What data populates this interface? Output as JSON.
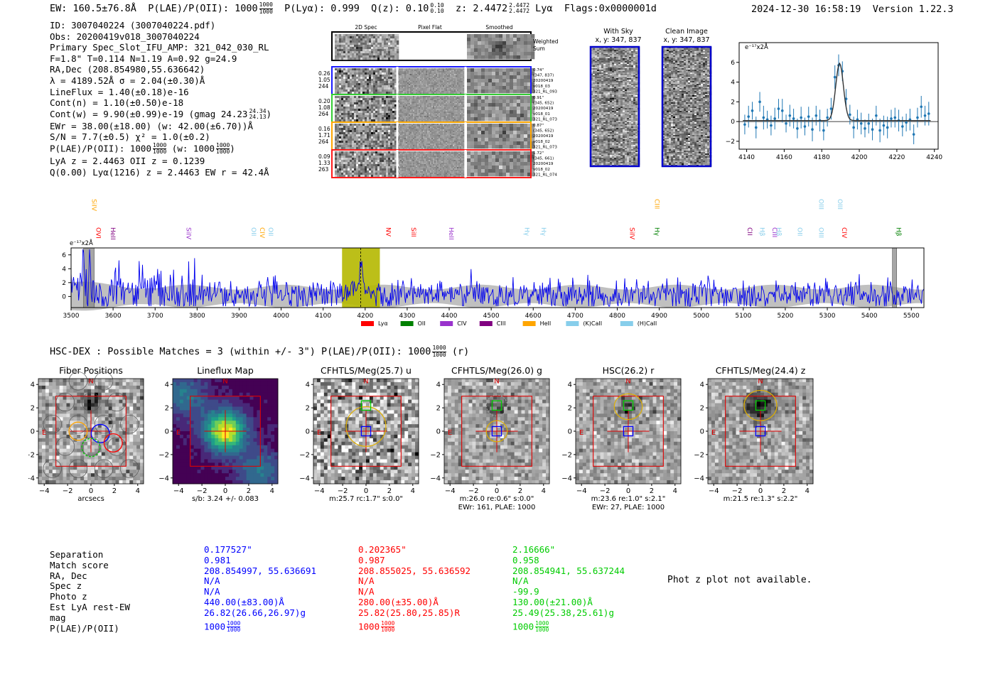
{
  "header": {
    "ew": "EW: 160.5±76.8Å",
    "plae_label": "P(LAE)/P(OII):",
    "plae_value": "1000",
    "plae_hi": "1000",
    "plae_lo": "1000",
    "plya": "P(Lyα): 0.999",
    "qz_label": "Q(z):",
    "qz_value": "0.10",
    "qz_hi": "0.10",
    "qz_lo": "0.10",
    "z_label": "z:",
    "z_value": "2.4472",
    "z_hi": "2.4472",
    "z_lo": "2.4472",
    "line": "Lyα",
    "flags": "Flags:0x0000001d",
    "datetime": "2024-12-30 16:58:19",
    "version": "Version 1.22.3"
  },
  "info": {
    "id": "ID: 3007040224 (3007040224.pdf)",
    "obs": "Obs: 20200419v018_3007040224",
    "primary": "Primary Spec_Slot_IFU_AMP: 321_042_030_RL",
    "fwhm": "F=1.8\"  T=0.114  N=1.19  A=0.92  g=24.9",
    "radec": "RA,Dec (208.854980,55.636642)",
    "lambda": "λ = 4189.52Å  σ = 2.04(±0.30)Å",
    "lineflux": "LineFlux = 1.40(±0.18)e-16",
    "contn": "Cont(n) = 1.10(±0.50)e-18",
    "contw": "Cont(w) = 9.90(±0.99)e-19 (gmag 24.23",
    "contw_hi": "24.34",
    "contw_lo": "24.13",
    "contw_end": ")",
    "ewr": "EWr = 38.00(±18.00) (w: 42.00(±6.70))Å",
    "sn": "S/N = 7.7(±0.5)  χ² = 1.0(±0.2)",
    "plae": "P(LAE)/P(OII): 1000",
    "plae_hi": "1000",
    "plae_lo": "1000",
    "plae_w": "(w: 1000",
    "plae_w_hi": "1000",
    "plae_w_lo": "1000",
    "plae_w_end": ")",
    "lyaz": "LyA z = 2.4463  OII z = 0.1239",
    "q": "Q(0.00) Lyα(1216) z = 2.4463  EW r = 42.4Å"
  },
  "cutout_panel": {
    "col_labels": [
      "2D Spec",
      "Pixel Flat",
      "Smoothed"
    ],
    "weighted_sum": "Weighted Sum",
    "rows": [
      {
        "left": [
          "0.26",
          "1.05",
          "244"
        ],
        "right": [
          "0.74\"",
          "(347, 837)",
          "20200419",
          "v018_03",
          "321_RL_093"
        ],
        "color": "#1a1aff"
      },
      {
        "left": [
          "0.20",
          "1.08",
          "264"
        ],
        "right": [
          "0.91\"",
          "(345, 652)",
          "20200419",
          "v018_01",
          "321_RL_073"
        ],
        "color": "#33cc33"
      },
      {
        "left": [
          "0.16",
          "1.71",
          "264"
        ],
        "right": [
          "0.87\"",
          "(345, 652)",
          "20200419",
          "v018_02",
          "321_RL_073"
        ],
        "color": "#ffa500"
      },
      {
        "left": [
          "0.09",
          "1.33",
          "263"
        ],
        "right": [
          "1.72\"",
          "(345, 661)",
          "20200419",
          "v018_02",
          "321_RL_074"
        ],
        "color": "#ff1a1a"
      }
    ]
  },
  "sky_panels": {
    "with_sky_title": "With Sky",
    "with_sky_coords": "x, y: 347, 837",
    "clean_title": "Clean Image",
    "clean_coords": "x, y: 347, 837"
  },
  "zoom_chart": {
    "ylabel": "e⁻¹⁷x2Å"
  },
  "chart_data": [
    {
      "type": "line",
      "title": "Line fit zoom",
      "xlim": [
        4136,
        4242
      ],
      "ylim": [
        -2.8,
        8.0
      ],
      "xticks": [
        4140,
        4160,
        4180,
        4200,
        4220,
        4240
      ],
      "yticks": [
        -2,
        0,
        2,
        4,
        6
      ],
      "ylabel": "e⁻¹⁷x2Å",
      "series": [
        {
          "name": "data",
          "color": "#1f77b4",
          "x": [
            4139,
            4141,
            4143,
            4145,
            4147,
            4149,
            4151,
            4153,
            4155,
            4157,
            4159,
            4161,
            4163,
            4165,
            4167,
            4169,
            4171,
            4173,
            4175,
            4177,
            4179,
            4181,
            4183,
            4185,
            4187,
            4189,
            4191,
            4193,
            4195,
            4197,
            4199,
            4201,
            4203,
            4205,
            4207,
            4209,
            4211,
            4213,
            4215,
            4217,
            4219,
            4221,
            4223,
            4225,
            4227,
            4229,
            4231,
            4233,
            4235,
            4237
          ],
          "y": [
            -0.3,
            0.5,
            1.1,
            -0.6,
            2.0,
            0.4,
            0.2,
            -0.4,
            0.3,
            1.3,
            1.1,
            -0.2,
            0.6,
            0.3,
            -0.7,
            0.4,
            -0.5,
            0.5,
            -0.8,
            0.6,
            0.1,
            -0.9,
            0.4,
            1.3,
            4.5,
            5.7,
            5.1,
            2.3,
            0.7,
            -0.6,
            0.2,
            -0.2,
            -0.7,
            -0.2,
            -0.8,
            0.6,
            -0.9,
            -0.4,
            -0.6,
            0.3,
            0.4,
            0.1,
            -0.5,
            -0.1,
            0.2,
            -1.3,
            0.4,
            1.5,
            0.6,
            0.8
          ],
          "err": [
            1.0,
            1.1,
            0.9,
            1.1,
            1.0,
            1.2,
            0.9,
            1.0,
            1.1,
            1.0,
            1.2,
            0.9,
            1.1,
            1.0,
            1.0,
            1.1,
            0.9,
            1.0,
            1.2,
            1.0,
            1.1,
            1.0,
            0.9,
            1.1,
            1.2,
            1.1,
            1.0,
            1.0,
            1.0,
            1.1,
            1.0,
            1.1,
            0.9,
            1.0,
            1.1,
            1.0,
            1.2,
            1.0,
            1.1,
            0.9,
            1.0,
            1.1,
            1.0,
            0.9,
            1.1,
            1.0,
            1.0,
            1.1,
            1.0,
            1.2
          ]
        },
        {
          "name": "model",
          "color": "#333333",
          "baseline": 0.1,
          "amplitude": 5.8,
          "center": 4189.5,
          "sigma": 2.04
        }
      ]
    },
    {
      "type": "line",
      "title": "Full spectrum",
      "xlim": [
        3500,
        5530
      ],
      "ylim": [
        -1.6,
        7.0
      ],
      "xticks": [
        3500,
        3600,
        3700,
        3800,
        3900,
        4000,
        4100,
        4200,
        4300,
        4400,
        4500,
        4600,
        4700,
        4800,
        4900,
        5000,
        5100,
        5200,
        5300,
        5400,
        5500
      ],
      "yticks": [
        0,
        2,
        4,
        6
      ],
      "ylabel": "e⁻¹⁷x2Å",
      "highlight_band": [
        4145,
        4235
      ],
      "gray_bars": [
        [
          3530,
          3555
        ],
        [
          5455,
          5465
        ]
      ],
      "dashed_at": 4189.5,
      "legend": [
        {
          "label": "Lyα",
          "color": "#ff0000"
        },
        {
          "label": "OII",
          "color": "#008000"
        },
        {
          "label": "CIV",
          "color": "#9932cc"
        },
        {
          "label": "CIII",
          "color": "#800080"
        },
        {
          "label": "HeII",
          "color": "#ffa500"
        },
        {
          "label": "(K)CaII",
          "color": "#87ceeb"
        },
        {
          "label": "(H)CaII",
          "color": "#87ceeb"
        }
      ],
      "line_labels": [
        {
          "x": 3545,
          "label": "SiIV",
          "color": "#ffa500",
          "row": "top"
        },
        {
          "x": 3555,
          "label": "OVI",
          "color": "#ff0000",
          "row": "low"
        },
        {
          "x": 3590,
          "label": "HeII",
          "color": "#800080",
          "row": "low"
        },
        {
          "x": 3770,
          "label": "SiIV",
          "color": "#9932cc",
          "row": "low"
        },
        {
          "x": 3925,
          "label": "OII",
          "color": "#87ceeb",
          "row": "low"
        },
        {
          "x": 3945,
          "label": "CIV",
          "color": "#ffa500",
          "row": "low"
        },
        {
          "x": 3965,
          "label": "OII",
          "color": "#87ceeb",
          "row": "low"
        },
        {
          "x": 4245,
          "label": "NV",
          "color": "#ff0000",
          "row": "low"
        },
        {
          "x": 4305,
          "label": "SiII",
          "color": "#ff0000",
          "row": "low"
        },
        {
          "x": 4395,
          "label": "HeII",
          "color": "#9932cc",
          "row": "low"
        },
        {
          "x": 4575,
          "label": "Hγ",
          "color": "#87ceeb",
          "row": "low"
        },
        {
          "x": 4615,
          "label": "Hγ",
          "color": "#87ceeb",
          "row": "low"
        },
        {
          "x": 4825,
          "label": "SiIV",
          "color": "#ff0000",
          "row": "low"
        },
        {
          "x": 4885,
          "label": "CIII",
          "color": "#ffa500",
          "row": "top"
        },
        {
          "x": 4885,
          "label": "Hγ",
          "color": "#008000",
          "row": "low"
        },
        {
          "x": 5105,
          "label": "CII",
          "color": "#800080",
          "row": "low"
        },
        {
          "x": 5135,
          "label": "Hβ",
          "color": "#87ceeb",
          "row": "low"
        },
        {
          "x": 5165,
          "label": "CIII",
          "color": "#9932cc",
          "row": "low"
        },
        {
          "x": 5175,
          "label": "Hβ",
          "color": "#87ceeb",
          "row": "low"
        },
        {
          "x": 5225,
          "label": "OII",
          "color": "#87ceeb",
          "row": "low"
        },
        {
          "x": 5275,
          "label": "OIII",
          "color": "#87ceeb",
          "row": "low"
        },
        {
          "x": 5275,
          "label": "OIII",
          "color": "#87ceeb",
          "row": "top"
        },
        {
          "x": 5320,
          "label": "OIII",
          "color": "#87ceeb",
          "row": "top"
        },
        {
          "x": 5330,
          "label": "CIV",
          "color": "#ff0000",
          "row": "low"
        },
        {
          "x": 5460,
          "label": "Hβ",
          "color": "#008000",
          "row": "low"
        }
      ]
    }
  ],
  "matches_title": "HSC-DEX : Possible Matches = 3 (within +/- 3\")  P(LAE)/P(OII): 1000",
  "matches_hi": "1000",
  "matches_lo": "1000",
  "matches_band": "(r)",
  "stamps": [
    {
      "title": "Fiber Positions",
      "xlabel": "arcsecs",
      "sub2": "",
      "kind": "fiber",
      "ticks": [
        "−4",
        "−2",
        "0",
        "2",
        "4"
      ],
      "n": "N",
      "e": "E"
    },
    {
      "title": "Lineflux Map",
      "xlabel": "s/b: 3.24 +/- 0.083",
      "sub2": "",
      "kind": "flux",
      "ticks": [
        "−4",
        "−2",
        "0",
        "2",
        "4"
      ],
      "n": "N",
      "e": "E"
    },
    {
      "title": "CFHTLS/Meg(25.7) u",
      "xlabel": "m:25.7 rc:1.7\"  s:0.0\"",
      "sub2": "",
      "kind": "u",
      "ticks": [
        "−4",
        "−2",
        "0",
        "2",
        "4"
      ],
      "n": "N",
      "e": "E"
    },
    {
      "title": "CFHTLS/Meg(26.0) g",
      "xlabel": "m:26.0  re:0.6\"  s:0.0\"",
      "sub2": "EWr: 161, PLAE: 1000",
      "kind": "g",
      "ticks": [
        "−4",
        "−2",
        "0",
        "2",
        "4"
      ],
      "n": "N",
      "e": "E"
    },
    {
      "title": "HSC(26.2) r",
      "xlabel": "m:23.6  re:1.0\"  s:2.1\"",
      "sub2": "EWr: 27, PLAE: 1000",
      "kind": "r",
      "ticks": [
        "−4",
        "−2",
        "0",
        "2",
        "4"
      ],
      "n": "N",
      "e": "E"
    },
    {
      "title": "CFHTLS/Meg(24.4) z",
      "xlabel": "m:21.5  re:1.3\"  s:2.2\"",
      "sub2": "",
      "kind": "z",
      "ticks": [
        "−4",
        "−2",
        "0",
        "2",
        "4"
      ],
      "n": "N",
      "e": "E"
    }
  ],
  "table": {
    "labels": [
      "Separation",
      "Match score",
      "RA, Dec",
      "Spec z",
      "Photo z",
      "Est LyA rest-EW",
      "mag",
      "P(LAE)/P(OII)"
    ],
    "columns": [
      {
        "color": "#0000ff",
        "values": [
          "0.177527\"",
          "0.981",
          "208.854997, 55.636691",
          "N/A",
          "N/A",
          "440.00(±83.00)Å",
          "26.82(26.66,26.97)g",
          "1000"
        ],
        "plae_hi": "1000",
        "plae_lo": "1000"
      },
      {
        "color": "#ff0000",
        "values": [
          "0.202365\"",
          "0.987",
          "208.855025, 55.636592",
          "N/A",
          "N/A",
          "280.00(±35.00)Å",
          "25.82(25.80,25.85)R",
          "1000"
        ],
        "plae_hi": "1000",
        "plae_lo": "1000"
      },
      {
        "color": "#00cc00",
        "values": [
          "2.16666\"",
          "0.958",
          "208.854941, 55.637244",
          "N/A",
          "-99.9",
          "130.00(±21.00)Å",
          "25.49(25.38,25.61)g",
          "1000"
        ],
        "plae_hi": "1000",
        "plae_lo": "1000"
      }
    ],
    "photz_note": "Phot z plot not available."
  }
}
